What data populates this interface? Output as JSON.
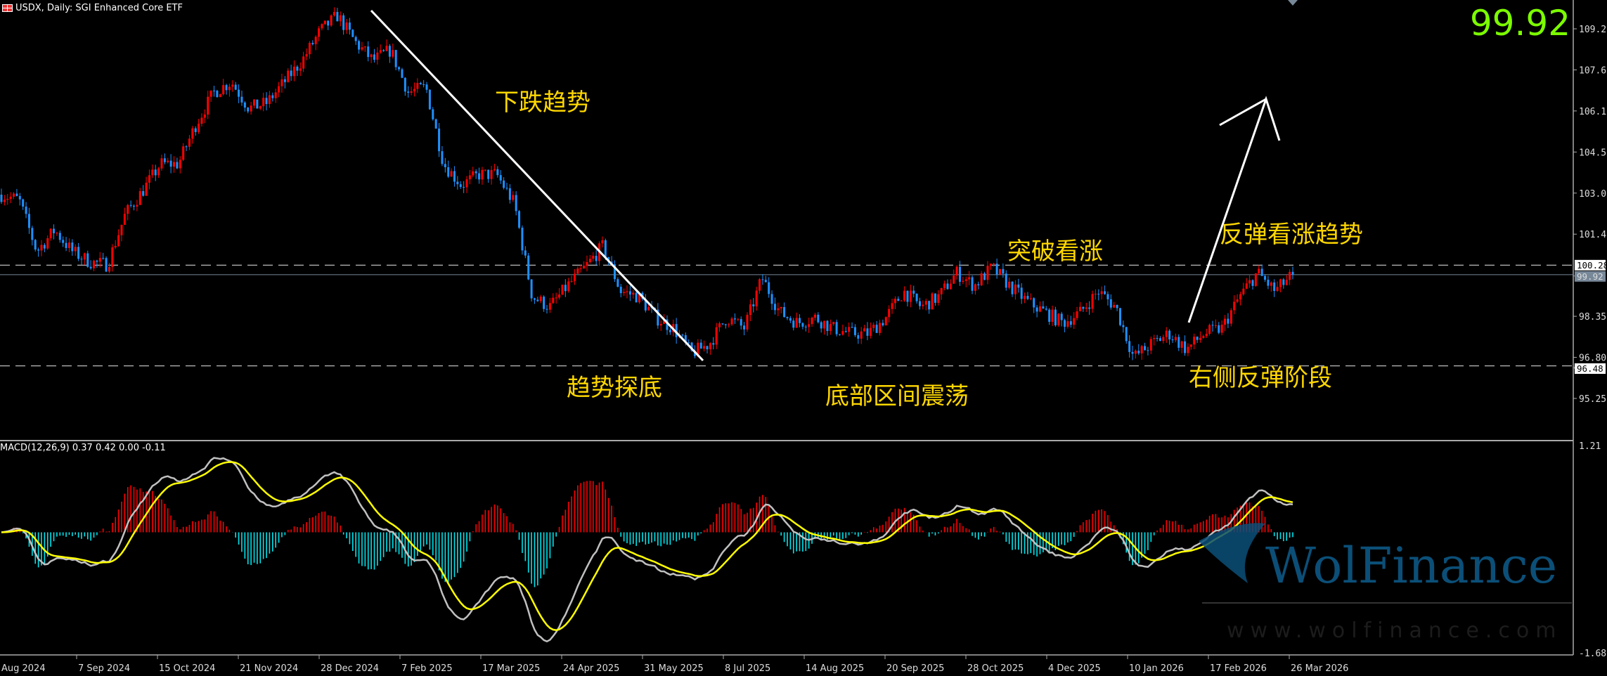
{
  "header": {
    "symbol_title": "USDX, Daily:  SGI Enhanced Core ETF",
    "icon": "flag-icon",
    "last_price": "99.92"
  },
  "indicator": {
    "label": "MACD(12,26,9) 0.37 0.42 0.00 -0.11"
  },
  "annotations": {
    "downtrend": "下跌趋势",
    "bottoming": "趋势探底",
    "range": "底部区间震荡",
    "breakout": "突破看涨",
    "rebound_trend": "反弹看涨趋势",
    "right_rebound": "右侧反弹阶段"
  },
  "watermark": {
    "brand": "WolFinance",
    "url": "www.wolfinance.com"
  },
  "colors": {
    "bull": "#ff0000",
    "bear": "#1e90ff",
    "macd": "#c0c0c0",
    "signal": "#ffff00",
    "hist_pos": "#ff0000",
    "hist_neg": "#00e5ee",
    "price_text": "#7cfc00",
    "annotation": "#ffd700"
  },
  "chart_data": {
    "type": "candlestick",
    "title": "USDX, Daily",
    "price_ticks": [
      "109.20",
      "107.65",
      "106.10",
      "104.55",
      "103.00",
      "101.45",
      "98.35",
      "96.80",
      "95.25"
    ],
    "price_range": [
      94.4,
      110.2
    ],
    "macd_ticks": [
      "1.21",
      "-1.68"
    ],
    "macd_range": [
      -1.68,
      1.21
    ],
    "levels": [
      {
        "value": 100.28,
        "label": "100.28",
        "style": "dashed"
      },
      {
        "value": 99.92,
        "label": "99.92",
        "style": "current"
      },
      {
        "value": 96.48,
        "label": "96.48",
        "style": "dashed"
      }
    ],
    "date_ticks": [
      "Aug 2024",
      "7 Sep 2024",
      "15 Oct 2024",
      "21 Nov 2024",
      "28 Dec 2024",
      "7 Feb 2025",
      "17 Mar 2025",
      "24 Apr 2025",
      "31 May 2025",
      "8 Jul 2025",
      "14 Aug 2025",
      "20 Sep 2025",
      "28 Oct 2025",
      "4 Dec 2025",
      "10 Jan 2026",
      "17 Feb 2026",
      "26 Mar 2026"
    ],
    "closes": [
      102.94,
      102.75,
      100.8,
      101.6,
      100.8,
      100.4,
      100.3,
      102.2,
      103.1,
      104.1,
      104.1,
      105.6,
      106.8,
      107.2,
      106.2,
      106.4,
      107.2,
      108.0,
      109.1,
      109.7,
      108.7,
      108.0,
      108.4,
      106.8,
      107.0,
      104.1,
      103.3,
      103.7,
      103.7,
      102.6,
      99.1,
      98.7,
      99.5,
      100.2,
      101.0,
      99.3,
      99.1,
      98.3,
      97.9,
      96.95,
      97.3,
      98.3,
      97.9,
      99.8,
      98.5,
      98.1,
      98.3,
      97.9,
      97.7,
      97.7,
      98.3,
      99.3,
      98.7,
      99.1,
      100.0,
      99.5,
      100.2,
      99.5,
      98.9,
      98.5,
      98.1,
      98.5,
      99.3,
      98.7,
      96.8,
      97.3,
      97.7,
      97.1,
      97.7,
      97.9,
      99.1,
      100.0,
      99.3,
      99.92
    ],
    "macd_params": [
      12,
      26,
      9
    ]
  }
}
